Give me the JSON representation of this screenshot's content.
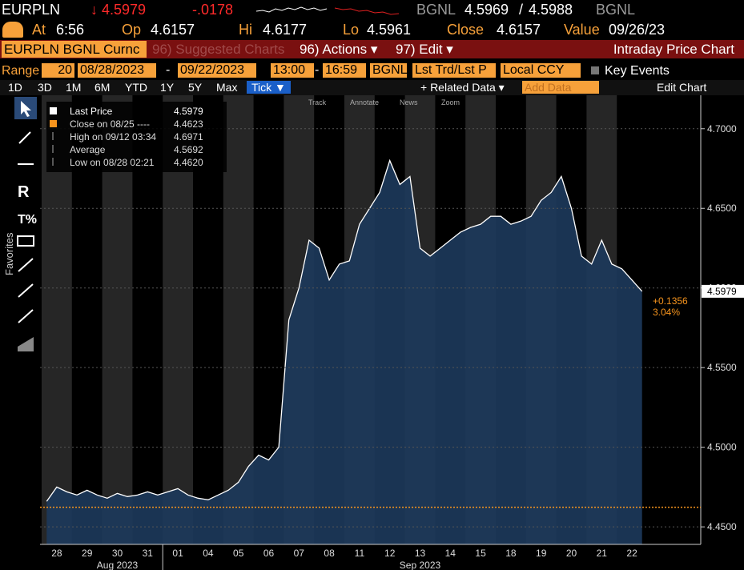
{
  "header": {
    "ticker": "EURPLN",
    "last": "↓ 4.5979",
    "change": "-.0178",
    "source": "BGNL",
    "bid": "4.5969",
    "sep": "/",
    "ask": "4.5988",
    "source2": "BGNL"
  },
  "quote": [
    {
      "label": "At",
      "value": "6:56"
    },
    {
      "label": "Op",
      "value": "4.6157"
    },
    {
      "label": "Hi",
      "value": "4.6177"
    },
    {
      "label": "Lo",
      "value": "4.5961"
    },
    {
      "label": "Close",
      "value": "4.6157"
    },
    {
      "label": "Value",
      "value": "09/26/23"
    }
  ],
  "menu": {
    "security": "EURPLN BGNL Curnc",
    "suggested": "96) Suggested Charts",
    "actions": "96) Actions ▾",
    "edit": "97) Edit ▾",
    "title": "Intraday Price Chart"
  },
  "range": {
    "label": "Range",
    "days": "20",
    "start": "08/28/2023",
    "dash": "-",
    "end": "09/22/2023",
    "t_start": "13:00",
    "dash2": "-",
    "t_end": "16:59",
    "source": "BGNL",
    "field": "Lst Trd/Lst P",
    "currency": "Local CCY",
    "events": "Key Events"
  },
  "periods": [
    "1D",
    "3D",
    "1M",
    "6M",
    "YTD",
    "1Y",
    "5Y",
    "Max",
    "Tick ▼"
  ],
  "tools": {
    "related": "+ Related Data ▾",
    "add": "Add Data",
    "edit_chart": "Edit Chart"
  },
  "chart_tools": [
    "Track",
    "Annotate",
    "News",
    "Zoom"
  ],
  "sidebar": "Favorites",
  "chart_data": {
    "type": "area",
    "categories": [
      null,
      "28",
      null,
      null,
      "29",
      null,
      null,
      "30",
      null,
      null,
      "31",
      null,
      null,
      "01",
      null,
      null,
      "04",
      null,
      null,
      "05",
      null,
      null,
      "06",
      null,
      null,
      "07",
      null,
      null,
      "08",
      null,
      null,
      "11",
      null,
      null,
      "12",
      null,
      null,
      "13",
      null,
      null,
      "14",
      null,
      null,
      "15",
      null,
      null,
      "18",
      null,
      null,
      "19",
      null,
      null,
      "20",
      null,
      null,
      "21",
      null,
      null,
      "22",
      null
    ],
    "months": [
      "Aug 2023",
      "Sep 2023"
    ],
    "series": [
      {
        "name": "Last Price",
        "color": "#ffffff",
        "values": [
          4.466,
          4.475,
          4.472,
          4.47,
          4.473,
          4.47,
          4.468,
          4.471,
          4.469,
          4.47,
          4.472,
          4.47,
          4.472,
          4.474,
          4.47,
          4.468,
          4.467,
          4.47,
          4.473,
          4.478,
          4.488,
          4.495,
          4.492,
          4.5,
          4.58,
          4.6,
          4.63,
          4.625,
          4.605,
          4.615,
          4.617,
          4.64,
          4.65,
          4.66,
          4.68,
          4.665,
          4.67,
          4.625,
          4.62,
          4.625,
          4.63,
          4.635,
          4.638,
          4.64,
          4.645,
          4.645,
          4.64,
          4.642,
          4.645,
          4.655,
          4.66,
          4.67,
          4.65,
          4.62,
          4.615,
          4.63,
          4.615,
          4.612,
          4.605,
          4.5979
        ]
      }
    ],
    "fill_color": "#1d3a5c",
    "ylim": [
      4.439,
      4.721
    ],
    "yticks": [
      {
        "value": 4.45,
        "label": "4.4500"
      },
      {
        "value": 4.5,
        "label": "4.5000"
      },
      {
        "value": 4.55,
        "label": "4.5500"
      },
      {
        "value": 4.6,
        "label": "4.6000"
      },
      {
        "value": 4.65,
        "label": "4.6500"
      },
      {
        "value": 4.7,
        "label": "4.7000"
      }
    ],
    "grid": true,
    "legend": [
      {
        "label": "Close on 08/25 ----",
        "value": 4.4623,
        "color": "#f7941d"
      },
      {
        "label": "High on 09/12 03:34",
        "value": 4.6971
      },
      {
        "label": "Average",
        "value": 4.5692
      },
      {
        "label": "Low on 08/28 02:21",
        "value": {
          "value": 4.462,
          "label": "4.4620"
        }
      }
    ],
    "change_labels": [
      "+0.1356",
      "3.04%"
    ]
  }
}
